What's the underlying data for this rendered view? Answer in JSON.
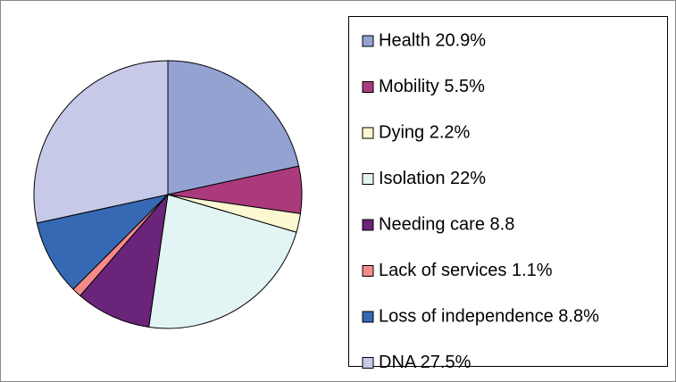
{
  "chart_data": {
    "type": "pie",
    "categories": [
      "Health 20.9%",
      "Mobility 5.5%",
      "Dying 2.2%",
      "Isolation 22%",
      "Needing care 8.8",
      "Lack of services 1.1%",
      "Loss of independence 8.8%",
      "DNA 27.5%"
    ],
    "values": [
      20.9,
      5.5,
      2.2,
      22,
      8.8,
      1.1,
      8.8,
      27.5
    ],
    "colors": [
      "#94a2d2",
      "#ab3a7c",
      "#fbf8d2",
      "#e2f4f4",
      "#6a2479",
      "#f58a8a",
      "#3669b3",
      "#c7c9e8"
    ],
    "legend": "right"
  }
}
